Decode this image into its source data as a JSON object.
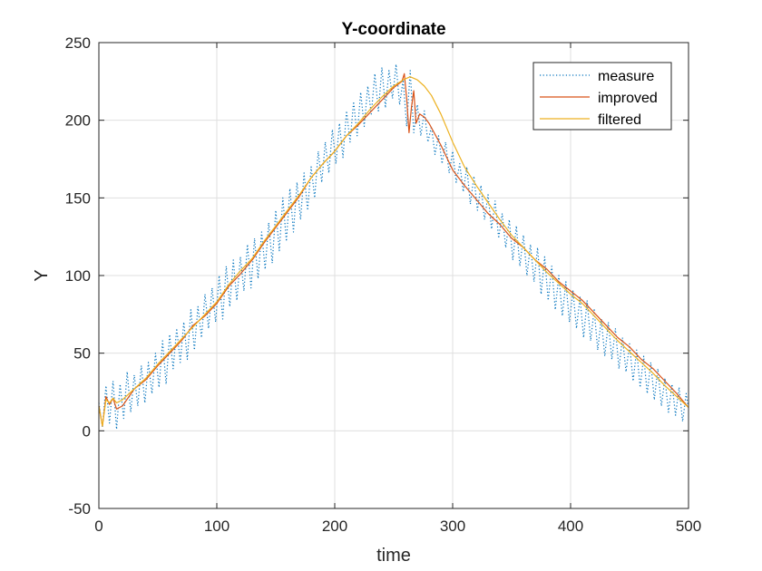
{
  "chart_data": {
    "type": "line",
    "title": "Y-coordinate",
    "xlabel": "time",
    "ylabel": "Y",
    "xlim": [
      0,
      500
    ],
    "ylim": [
      -50,
      250
    ],
    "xticks": [
      0,
      100,
      200,
      300,
      400,
      500
    ],
    "yticks": [
      -50,
      0,
      50,
      100,
      150,
      200,
      250
    ],
    "xtick_labels": [
      "0",
      "100",
      "200",
      "300",
      "400",
      "500"
    ],
    "ytick_labels": [
      "-50",
      "0",
      "50",
      "100",
      "150",
      "200",
      "250"
    ],
    "grid": true,
    "legend_position": "top-right",
    "series": [
      {
        "name": "measure",
        "color": "#0072BD",
        "style": "dotted",
        "x": [
          0,
          3,
          6,
          9,
          12,
          15,
          18,
          21,
          24,
          27,
          30,
          33,
          36,
          39,
          42,
          45,
          48,
          51,
          54,
          57,
          60,
          63,
          66,
          69,
          72,
          75,
          78,
          81,
          84,
          87,
          90,
          93,
          96,
          99,
          102,
          105,
          108,
          111,
          114,
          117,
          120,
          123,
          126,
          129,
          132,
          135,
          138,
          141,
          144,
          147,
          150,
          153,
          156,
          159,
          162,
          165,
          168,
          171,
          174,
          177,
          180,
          183,
          186,
          189,
          192,
          195,
          198,
          201,
          204,
          207,
          210,
          213,
          216,
          219,
          222,
          225,
          228,
          231,
          234,
          237,
          240,
          243,
          246,
          249,
          252,
          255,
          258,
          261,
          264,
          267,
          270,
          273,
          276,
          279,
          282,
          285,
          288,
          291,
          294,
          297,
          300,
          303,
          306,
          309,
          312,
          315,
          318,
          321,
          324,
          327,
          330,
          333,
          336,
          339,
          342,
          345,
          348,
          351,
          354,
          357,
          360,
          363,
          366,
          369,
          372,
          375,
          378,
          381,
          384,
          387,
          390,
          393,
          396,
          399,
          402,
          405,
          408,
          411,
          414,
          417,
          420,
          423,
          426,
          429,
          432,
          435,
          438,
          441,
          444,
          447,
          450,
          453,
          456,
          459,
          462,
          465,
          468,
          471,
          474,
          477,
          480,
          483,
          486,
          489,
          492,
          495,
          498,
          500
        ],
        "values": [
          18,
          2,
          29,
          5,
          32,
          1,
          30,
          8,
          38,
          12,
          36,
          16,
          42,
          18,
          44,
          24,
          50,
          28,
          58,
          30,
          62,
          40,
          66,
          44,
          70,
          46,
          78,
          52,
          80,
          60,
          88,
          66,
          92,
          70,
          100,
          72,
          106,
          80,
          110,
          84,
          112,
          90,
          120,
          92,
          124,
          98,
          128,
          104,
          134,
          108,
          142,
          116,
          150,
          122,
          156,
          128,
          160,
          136,
          166,
          142,
          170,
          150,
          180,
          160,
          186,
          166,
          194,
          172,
          198,
          176,
          206,
          186,
          212,
          190,
          218,
          196,
          222,
          204,
          230,
          206,
          234,
          208,
          232,
          214,
          236,
          210,
          226,
          196,
          232,
          192,
          210,
          190,
          206,
          186,
          196,
          178,
          190,
          172,
          186,
          166,
          180,
          160,
          172,
          154,
          170,
          146,
          164,
          142,
          158,
          136,
          152,
          130,
          148,
          124,
          140,
          118,
          136,
          110,
          132,
          106,
          126,
          100,
          120,
          96,
          118,
          88,
          112,
          84,
          106,
          78,
          100,
          74,
          96,
          70,
          90,
          66,
          86,
          60,
          84,
          58,
          78,
          52,
          72,
          48,
          70,
          46,
          66,
          40,
          60,
          38,
          56,
          32,
          52,
          28,
          48,
          24,
          44,
          20,
          40,
          16,
          34,
          12,
          30,
          10,
          28,
          6,
          24,
          14
        ]
      },
      {
        "name": "improved",
        "color": "#D95319",
        "style": "solid",
        "x": [
          0,
          3,
          6,
          9,
          12,
          15,
          20,
          30,
          40,
          50,
          60,
          70,
          80,
          90,
          100,
          110,
          120,
          130,
          140,
          150,
          160,
          170,
          180,
          190,
          200,
          210,
          220,
          230,
          240,
          250,
          257,
          259,
          261,
          263,
          265,
          267,
          269,
          272,
          276,
          280,
          290,
          300,
          310,
          320,
          330,
          340,
          350,
          360,
          370,
          380,
          390,
          400,
          410,
          420,
          430,
          440,
          450,
          460,
          470,
          480,
          490,
          500
        ],
        "values": [
          16,
          3,
          22,
          17,
          21,
          14,
          16,
          27,
          33,
          42,
          50,
          58,
          68,
          74,
          82,
          93,
          101,
          110,
          121,
          131,
          141,
          151,
          163,
          172,
          180,
          190,
          197,
          205,
          213,
          221,
          225,
          230,
          214,
          192,
          208,
          219,
          198,
          204,
          202,
          198,
          184,
          168,
          158,
          149,
          140,
          133,
          124,
          118,
          110,
          104,
          96,
          90,
          84,
          76,
          68,
          60,
          54,
          46,
          40,
          32,
          24,
          15
        ]
      },
      {
        "name": "filtered",
        "color": "#EDB120",
        "style": "solid",
        "x": [
          0,
          3,
          6,
          9,
          12,
          15,
          20,
          30,
          40,
          50,
          60,
          70,
          80,
          90,
          100,
          110,
          120,
          130,
          140,
          150,
          160,
          170,
          180,
          190,
          200,
          210,
          220,
          230,
          240,
          250,
          258,
          264,
          270,
          276,
          282,
          290,
          300,
          310,
          320,
          330,
          340,
          350,
          360,
          370,
          380,
          390,
          400,
          410,
          420,
          430,
          440,
          450,
          460,
          470,
          480,
          490,
          500
        ],
        "values": [
          16,
          3,
          20,
          18,
          21,
          18,
          20,
          27,
          34,
          43,
          51,
          59,
          67,
          75,
          83,
          94,
          103,
          111,
          122,
          132,
          142,
          152,
          163,
          172,
          180,
          190,
          198,
          207,
          215,
          222,
          226,
          228,
          226,
          222,
          216,
          204,
          186,
          170,
          158,
          147,
          136,
          126,
          118,
          110,
          102,
          95,
          88,
          82,
          74,
          66,
          58,
          51,
          44,
          37,
          29,
          22,
          15
        ]
      }
    ]
  }
}
